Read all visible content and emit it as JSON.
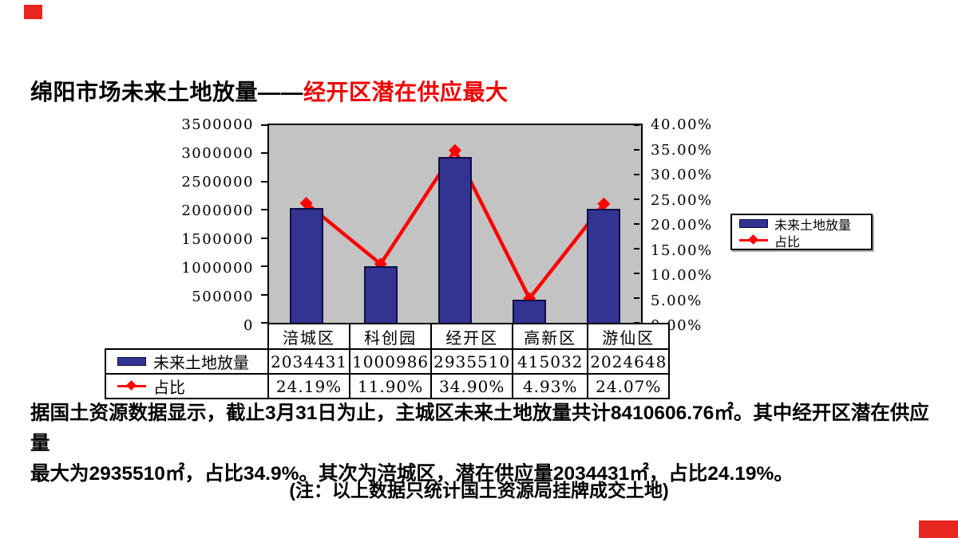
{
  "title": {
    "black": "绵阳市场未来土地放量——",
    "red": "经开区潜在供应最大",
    "red_color": "#ee0000"
  },
  "chart": {
    "left_axis_labels": [
      "3500000",
      "3000000",
      "2500000",
      "2000000",
      "1500000",
      "1000000",
      "500000",
      "0"
    ],
    "right_axis_labels": [
      "40.00%",
      "35.00%",
      "30.00%",
      "25.00%",
      "20.00%",
      "15.00%",
      "10.00%",
      "5.00%",
      "0.00%"
    ],
    "legend_labels": [
      "未来土地放量",
      "占比"
    ],
    "colors": {
      "bar_fill": "#333391",
      "bar_border": "#0d0d45",
      "line": "#ff0000",
      "plot_background": "#c3c3c3",
      "axis": "#000000"
    }
  },
  "chart_data": {
    "type": "bar+line",
    "categories": [
      "涪城区",
      "科创园",
      "经开区",
      "高新区",
      "游仙区"
    ],
    "series": [
      {
        "name": "未来土地放量",
        "type": "bar",
        "axis": "left",
        "values": [
          2034431,
          1000986,
          2935510,
          415032,
          2024648
        ]
      },
      {
        "name": "占比",
        "type": "line",
        "axis": "right",
        "unit": "%",
        "values": [
          24.19,
          11.9,
          34.9,
          4.93,
          24.07
        ]
      }
    ],
    "left_ylim": [
      0,
      3500000
    ],
    "left_tick_step": 500000,
    "right_ylim": [
      0,
      40
    ],
    "right_tick_step": 5,
    "grid": false,
    "legend_position": "right-middle",
    "title": "",
    "xlabel": "",
    "ylabel": ""
  },
  "table": {
    "categories": [
      "涪城区",
      "科创园",
      "经开区",
      "高新区",
      "游仙区"
    ],
    "rows": [
      {
        "label": "未来土地放量",
        "swatch": "bar",
        "values": [
          "2034431",
          "1000986",
          "2935510",
          "415032",
          "2024648"
        ]
      },
      {
        "label": "占比",
        "swatch": "line",
        "values": [
          "24.19%",
          "11.90%",
          "34.90%",
          "4.93%",
          "24.07%"
        ]
      }
    ]
  },
  "body": {
    "line1": "据国土资源数据显示，截止3月31日为止，主城区未来土地放量共计8410606.76㎡。其中经开区潜在供应量",
    "line2": "最大为2935510㎡，占比34.9%。其次为涪城区，潜在供应量2034431㎡，占比24.19%。",
    "note": "(注：以上数据只统计国土资源局挂牌成交土地)"
  },
  "accents": {
    "color": "#e8261f"
  }
}
